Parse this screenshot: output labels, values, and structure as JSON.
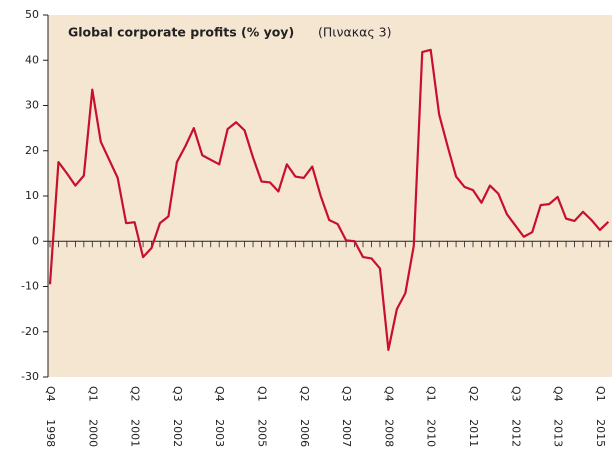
{
  "chart_data": {
    "type": "line",
    "title": "Global corporate profits (% yoy)",
    "subtitle": "(Πινακας 3)",
    "categories": [
      "Q4 1998",
      null,
      null,
      null,
      null,
      "Q1 2000",
      null,
      null,
      null,
      null,
      "Q2 2001",
      null,
      null,
      null,
      null,
      "Q3 2002",
      null,
      null,
      null,
      null,
      "Q4 2003",
      null,
      null,
      null,
      null,
      "Q1 2005",
      null,
      null,
      null,
      null,
      "Q2 2006",
      null,
      null,
      null,
      null,
      "Q3 2007",
      null,
      null,
      null,
      null,
      "Q4 2008",
      null,
      null,
      null,
      null,
      "Q1 2010",
      null,
      null,
      null,
      null,
      "Q2 2011",
      null,
      null,
      null,
      null,
      "Q3 2012",
      null,
      null,
      null,
      null,
      "Q4 2013",
      null,
      null,
      null,
      null,
      "Q1 2015",
      null
    ],
    "series": [
      {
        "color": "#c8102e",
        "values": [
          -9.5,
          17.5,
          15,
          12.3,
          14.5,
          33.5,
          22,
          18,
          14,
          4,
          4.2,
          -3.5,
          -1.5,
          4,
          5.5,
          17.5,
          21,
          25,
          19,
          18,
          17,
          24.8,
          26.3,
          24.5,
          18.5,
          13.2,
          13,
          11,
          17,
          14.3,
          14,
          16.5,
          10,
          4.7,
          3.8,
          0.2,
          0,
          -3.5,
          -3.8,
          -6,
          -24,
          -15,
          -11.5,
          -1,
          41.8,
          42.3,
          28,
          21,
          14.3,
          12,
          11.3,
          8.5,
          12.3,
          10.5,
          6,
          3.5,
          1,
          2,
          8,
          8.2,
          9.8,
          5,
          4.5,
          6.5,
          4.7,
          2.5,
          4.3
        ]
      }
    ],
    "ylim": [
      -30,
      50
    ],
    "yticks": [
      -30,
      -20,
      -10,
      0,
      10,
      20,
      30,
      40,
      50
    ],
    "grid": false
  }
}
